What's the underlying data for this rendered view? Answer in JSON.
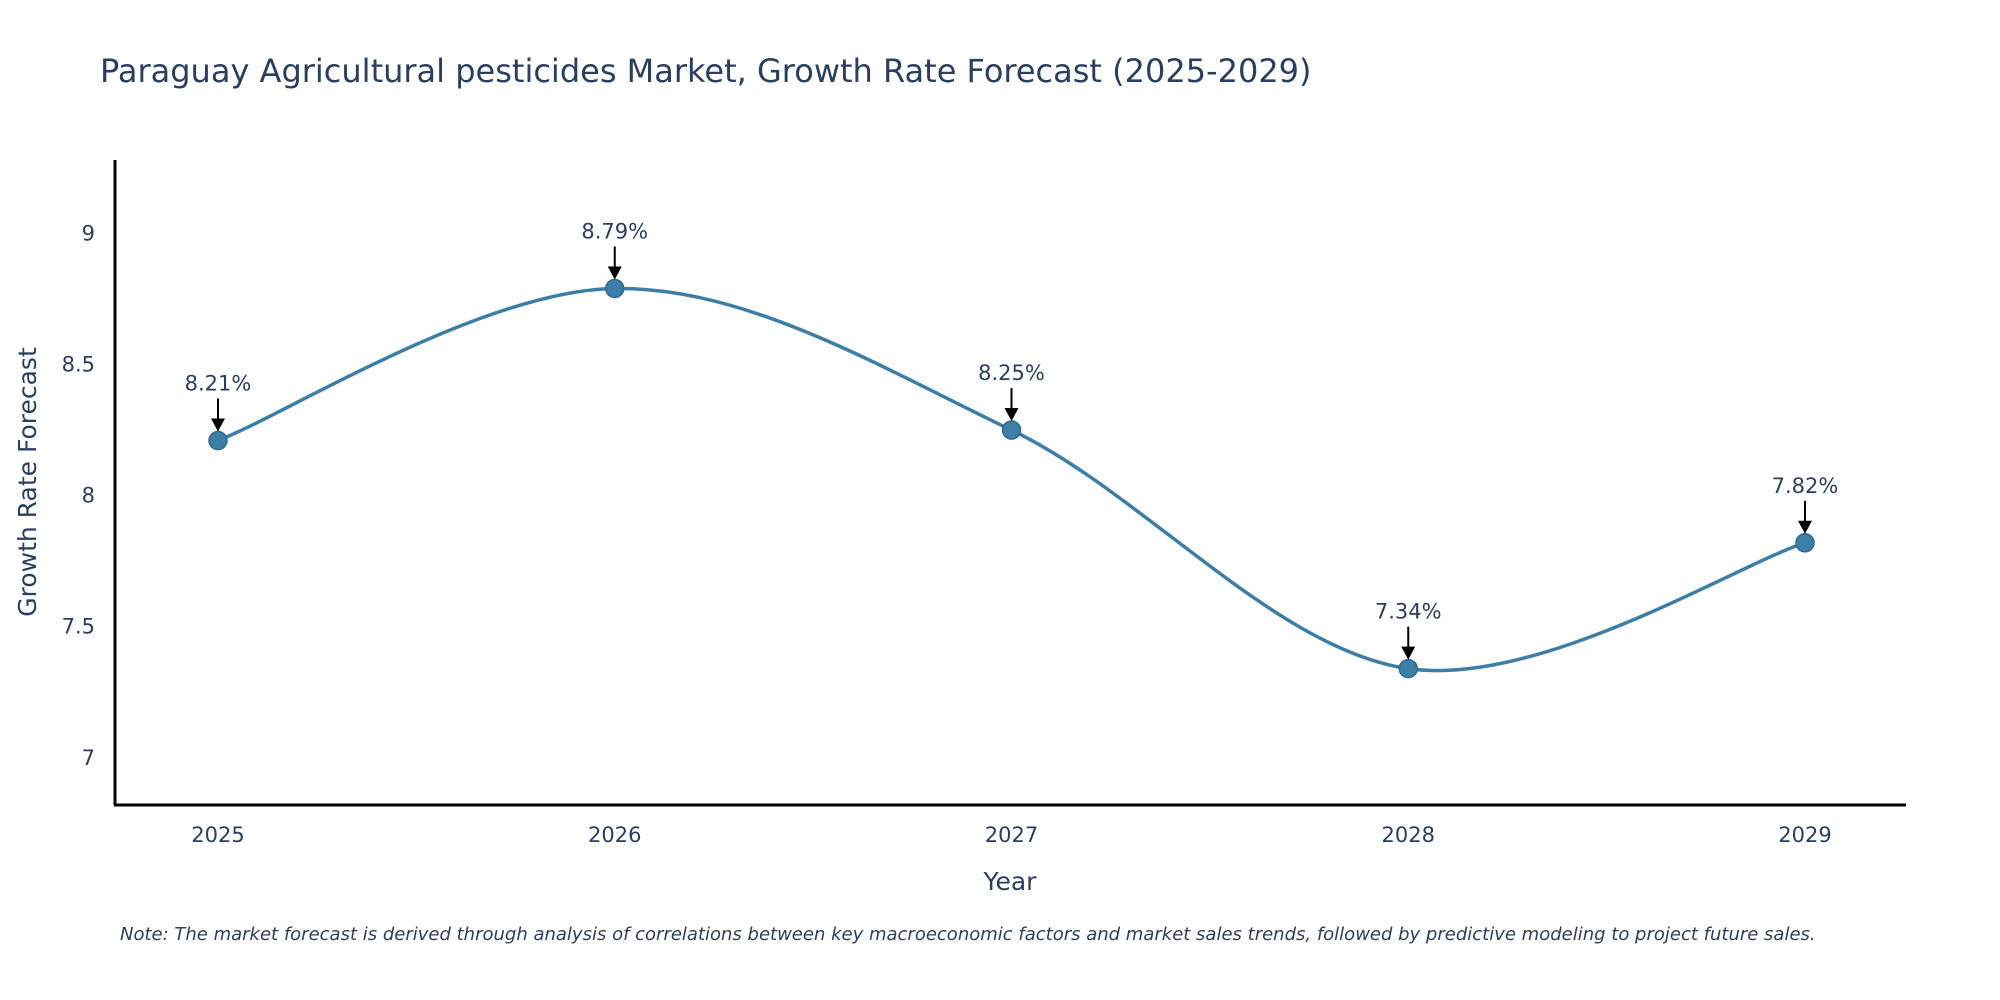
{
  "chart_data": {
    "type": "line",
    "title": "Paraguay Agricultural pesticides Market, Growth Rate Forecast (2025-2029)",
    "xlabel": "Year",
    "ylabel": "Growth Rate Forecast",
    "categories": [
      "2025",
      "2026",
      "2027",
      "2028",
      "2029"
    ],
    "values": [
      8.21,
      8.79,
      8.25,
      7.34,
      7.82
    ],
    "data_labels": [
      "8.21%",
      "8.79%",
      "8.25%",
      "7.34%",
      "7.82%"
    ],
    "yticks": [
      7,
      7.5,
      8,
      8.5,
      9
    ],
    "ytick_labels": [
      "7",
      "7.5",
      "8",
      "8.5",
      "9"
    ],
    "ylim": [
      6.82,
      9.28
    ],
    "line_color": "#3d7ea6",
    "marker_color": "#3d7ea6",
    "grid": false,
    "note": "Note: The market forecast is derived through analysis of correlations between key macroeconomic factors and market sales trends, followed by predictive modeling to project future sales."
  }
}
